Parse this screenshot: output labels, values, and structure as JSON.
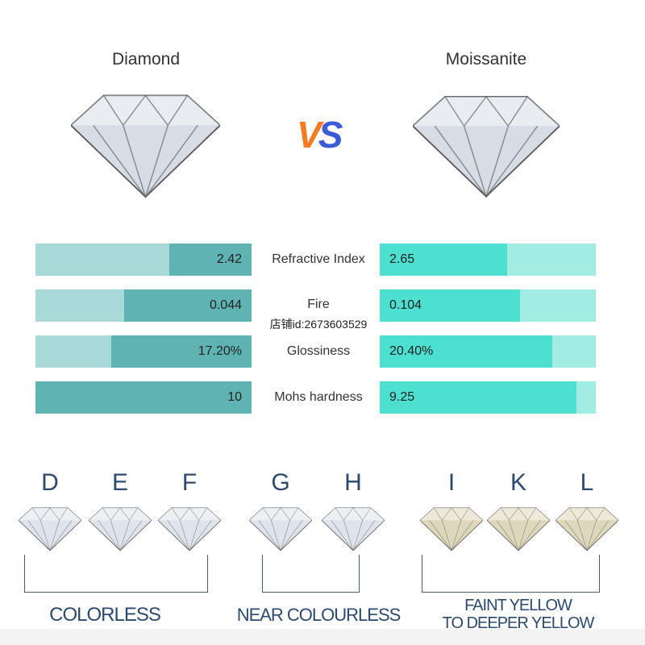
{
  "header": {
    "left_title": "Diamond",
    "right_title": "Moissanite",
    "vs": {
      "v": "V",
      "s": "S",
      "v_color": "#f47b20",
      "s_color": "#3c5bd6"
    }
  },
  "metrics": [
    {
      "label": "Refractive Index",
      "diamond": "2.42",
      "moissanite": "2.65",
      "diamond_fill": 0.38,
      "moissanite_fill": 0.59
    },
    {
      "label": "Fire",
      "diamond": "0.044",
      "moissanite": "0.104",
      "diamond_fill": 0.59,
      "moissanite_fill": 0.65
    },
    {
      "label": "Glossiness",
      "diamond": "17.20%",
      "moissanite": "20.40%",
      "diamond_fill": 0.65,
      "moissanite_fill": 0.8
    },
    {
      "label": "Mohs hardness",
      "diamond": "10",
      "moissanite": "9.25",
      "diamond_fill": 1.0,
      "moissanite_fill": 0.91
    }
  ],
  "watermark": "店铺id:2673603529",
  "colors": {
    "diamond_bar": "#5fb3b3",
    "diamond_track": "#a9d9d9",
    "moissanite_bar": "#4ddfd0",
    "moissanite_track": "#a3ece4",
    "grade_text": "#2d4a6e"
  },
  "grades": {
    "letters": [
      "D",
      "E",
      "F",
      "G",
      "H",
      "I",
      "K",
      "L"
    ],
    "groups": [
      {
        "label_line1": "COLORLESS",
        "label_line2": ""
      },
      {
        "label_line1": "NEAR COLOURLESS",
        "label_line2": ""
      },
      {
        "label_line1": "FAINT YELLOW",
        "label_line2": "TO DEEPER YELLOW"
      }
    ]
  }
}
